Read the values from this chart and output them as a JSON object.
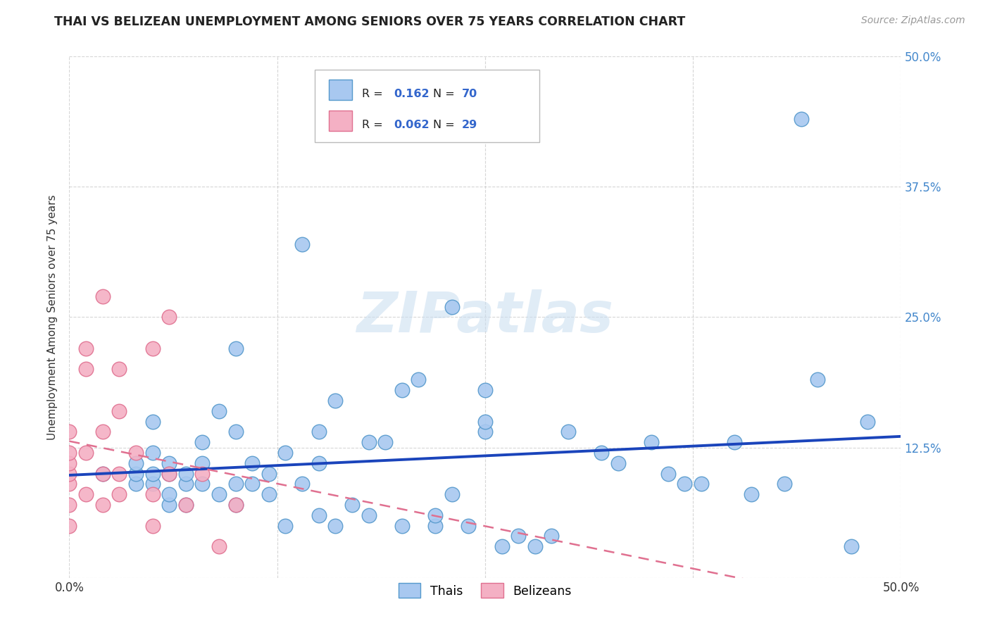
{
  "title": "THAI VS BELIZEAN UNEMPLOYMENT AMONG SENIORS OVER 75 YEARS CORRELATION CHART",
  "source": "Source: ZipAtlas.com",
  "ylabel": "Unemployment Among Seniors over 75 years",
  "xlim": [
    0,
    0.5
  ],
  "ylim": [
    0,
    0.5
  ],
  "xticks": [
    0.0,
    0.125,
    0.25,
    0.375,
    0.5
  ],
  "yticks": [
    0.0,
    0.125,
    0.25,
    0.375,
    0.5
  ],
  "xtick_labels_bottom": [
    "0.0%",
    "",
    "",
    "",
    "50.0%"
  ],
  "ytick_labels_right": [
    "",
    "12.5%",
    "25.0%",
    "37.5%",
    "50.0%"
  ],
  "thai_color": "#a8c8f0",
  "thai_edge_color": "#5599cc",
  "belizean_color": "#f4b0c4",
  "belizean_edge_color": "#e07090",
  "thai_R": "0.162",
  "thai_N": "70",
  "belizean_R": "0.062",
  "belizean_N": "29",
  "thai_line_color": "#1a44bb",
  "belizean_line_color": "#e07090",
  "watermark_text": "ZIPatlas",
  "watermark_color": "#c8ddf0",
  "background_color": "#ffffff",
  "grid_color": "#cccccc",
  "thai_x": [
    0.02,
    0.04,
    0.04,
    0.04,
    0.05,
    0.05,
    0.05,
    0.05,
    0.06,
    0.06,
    0.06,
    0.06,
    0.07,
    0.07,
    0.07,
    0.08,
    0.08,
    0.08,
    0.09,
    0.09,
    0.1,
    0.1,
    0.1,
    0.1,
    0.11,
    0.11,
    0.12,
    0.12,
    0.13,
    0.13,
    0.14,
    0.14,
    0.15,
    0.15,
    0.15,
    0.16,
    0.16,
    0.17,
    0.18,
    0.18,
    0.19,
    0.2,
    0.2,
    0.21,
    0.22,
    0.22,
    0.23,
    0.23,
    0.24,
    0.25,
    0.25,
    0.25,
    0.26,
    0.27,
    0.28,
    0.29,
    0.3,
    0.32,
    0.33,
    0.35,
    0.36,
    0.37,
    0.38,
    0.4,
    0.41,
    0.43,
    0.44,
    0.45,
    0.47,
    0.48
  ],
  "thai_y": [
    0.1,
    0.09,
    0.1,
    0.11,
    0.09,
    0.1,
    0.12,
    0.15,
    0.07,
    0.08,
    0.1,
    0.11,
    0.07,
    0.09,
    0.1,
    0.09,
    0.11,
    0.13,
    0.08,
    0.16,
    0.07,
    0.09,
    0.14,
    0.22,
    0.09,
    0.11,
    0.08,
    0.1,
    0.05,
    0.12,
    0.09,
    0.32,
    0.06,
    0.11,
    0.14,
    0.05,
    0.17,
    0.07,
    0.06,
    0.13,
    0.13,
    0.05,
    0.18,
    0.19,
    0.05,
    0.06,
    0.08,
    0.26,
    0.05,
    0.14,
    0.15,
    0.18,
    0.03,
    0.04,
    0.03,
    0.04,
    0.14,
    0.12,
    0.11,
    0.13,
    0.1,
    0.09,
    0.09,
    0.13,
    0.08,
    0.09,
    0.44,
    0.19,
    0.03,
    0.15
  ],
  "belizean_x": [
    0.0,
    0.0,
    0.0,
    0.0,
    0.0,
    0.0,
    0.0,
    0.01,
    0.01,
    0.01,
    0.01,
    0.02,
    0.02,
    0.02,
    0.02,
    0.03,
    0.03,
    0.03,
    0.03,
    0.04,
    0.05,
    0.05,
    0.05,
    0.06,
    0.06,
    0.07,
    0.08,
    0.09,
    0.1
  ],
  "belizean_y": [
    0.05,
    0.07,
    0.09,
    0.1,
    0.11,
    0.12,
    0.14,
    0.08,
    0.12,
    0.2,
    0.22,
    0.07,
    0.1,
    0.14,
    0.27,
    0.08,
    0.1,
    0.16,
    0.2,
    0.12,
    0.05,
    0.08,
    0.22,
    0.1,
    0.25,
    0.07,
    0.1,
    0.03,
    0.07
  ]
}
